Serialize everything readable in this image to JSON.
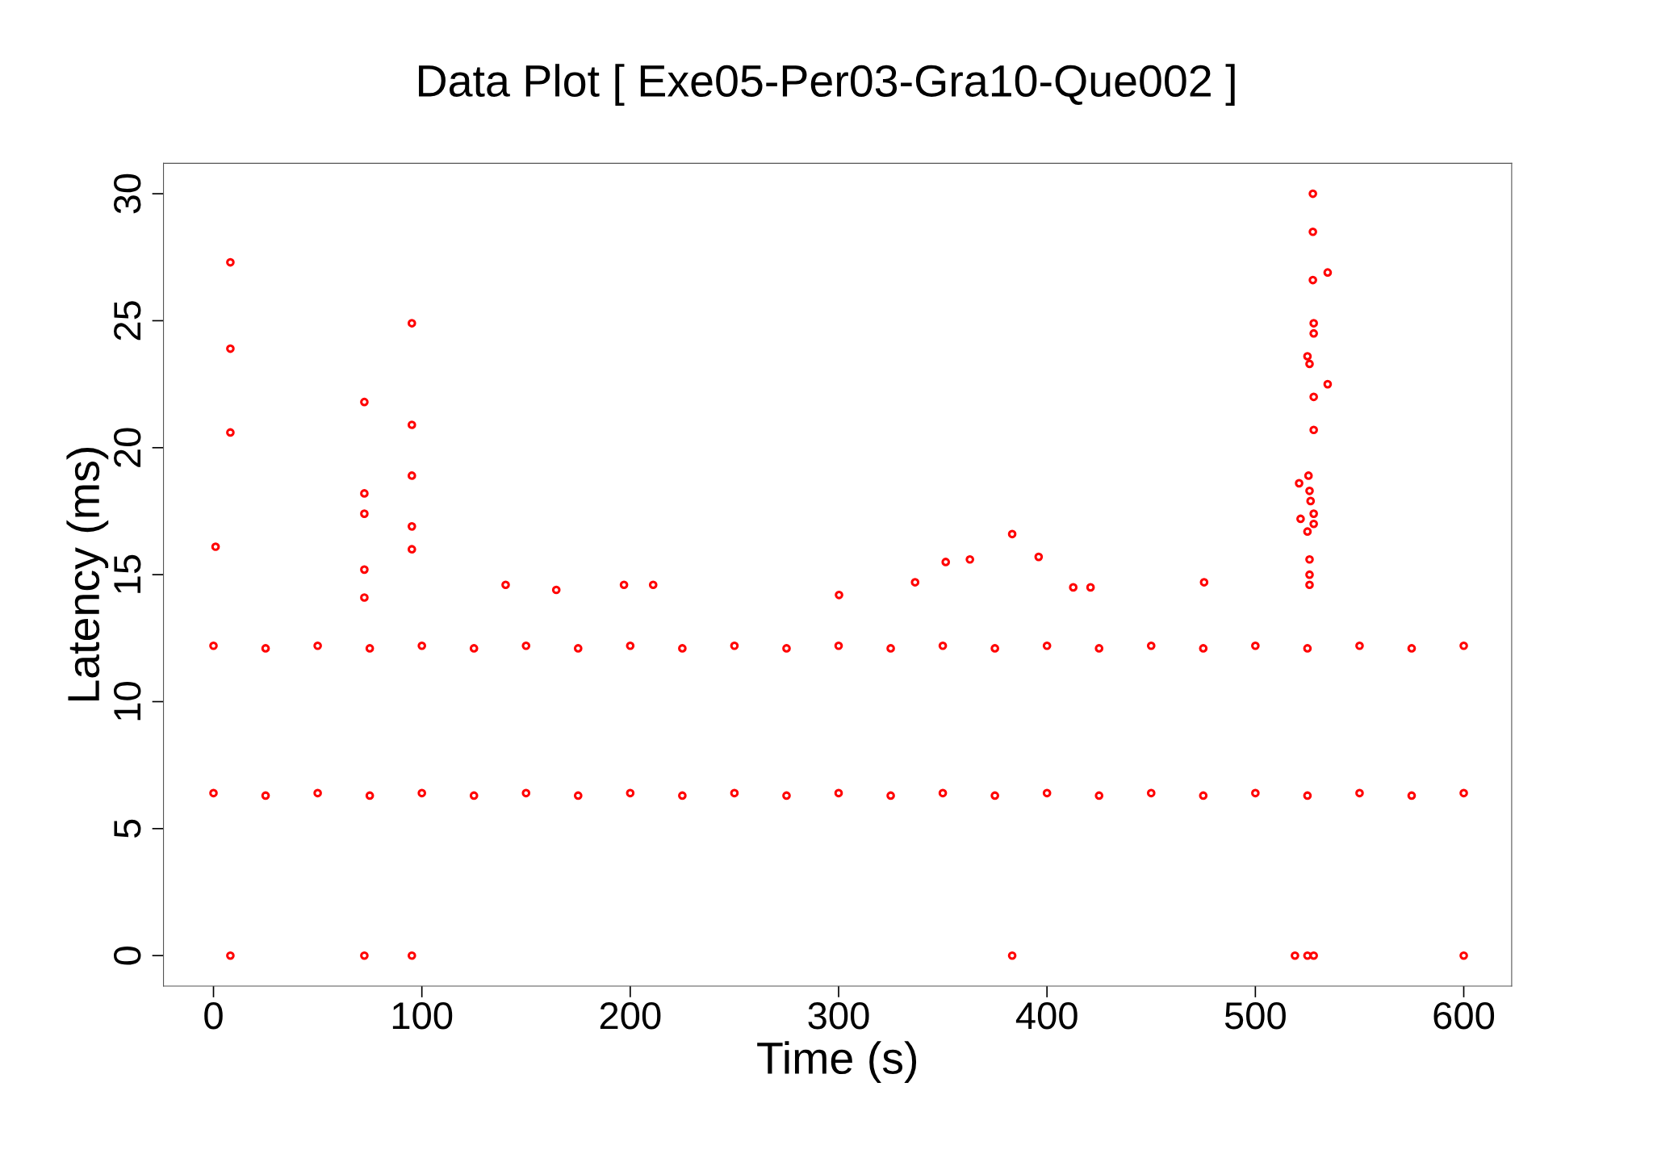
{
  "chart_data": {
    "type": "scatter",
    "title": "Data Plot [ Exe05-Per03-Gra10-Que002 ]",
    "xlabel": "Time (s)",
    "ylabel": "Latency (ms)",
    "xlim": [
      -24,
      623
    ],
    "ylim": [
      -1.2,
      31.2
    ],
    "xticks": [
      0,
      100,
      200,
      300,
      400,
      500,
      600
    ],
    "yticks": [
      0,
      5,
      10,
      15,
      20,
      25,
      30
    ],
    "grid": false,
    "marker": "circle",
    "series": [
      {
        "color": "#ff0000",
        "x": [
          8.1,
          8.1,
          8.1,
          1,
          8.1,
          72.4,
          72.4,
          72.4,
          72.4,
          72.4,
          72.4,
          95.2,
          95.2,
          95.2,
          95.2,
          95.2,
          95.2,
          383.3,
          396,
          383.3,
          527.6,
          527.6,
          527.6,
          534.7,
          528,
          528,
          525,
          526,
          528,
          534.7,
          528,
          521,
          525.5,
          526,
          526.5,
          528,
          528,
          521.7,
          525,
          526,
          526,
          526,
          519,
          525,
          528,
          600,
          475.4,
          412.6,
          336.7,
          140.2,
          164.5,
          211,
          197,
          300.2,
          351.4,
          363,
          420.9,
          0,
          25,
          50,
          75,
          100,
          125,
          150,
          175,
          200,
          225,
          250,
          275,
          300,
          325,
          350,
          375,
          400,
          425,
          450,
          475,
          500,
          525,
          550,
          575,
          600,
          0,
          25,
          50,
          75,
          100,
          125,
          150,
          175,
          200,
          225,
          250,
          275,
          300,
          325,
          350,
          375,
          400,
          425,
          450,
          475,
          500,
          525,
          550,
          575,
          600
        ],
        "values": [
          27.3,
          23.9,
          20.6,
          16.1,
          0,
          21.8,
          18.2,
          17.4,
          15.2,
          14.1,
          0,
          24.9,
          20.9,
          18.9,
          16.9,
          16.0,
          0,
          16.6,
          15.7,
          0,
          30.0,
          28.5,
          26.6,
          26.9,
          24.9,
          24.5,
          23.6,
          23.3,
          22.0,
          22.5,
          20.7,
          18.6,
          18.9,
          18.3,
          17.9,
          17.4,
          17.0,
          17.2,
          16.7,
          15.6,
          15.0,
          14.6,
          0,
          0,
          0,
          0,
          14.7,
          14.5,
          14.7,
          14.6,
          14.4,
          14.6,
          14.6,
          14.2,
          15.5,
          15.6,
          14.5,
          12.2,
          12.1,
          12.2,
          12.1,
          12.2,
          12.1,
          12.2,
          12.1,
          12.2,
          12.1,
          12.2,
          12.1,
          12.2,
          12.1,
          12.2,
          12.1,
          12.2,
          12.1,
          12.2,
          12.1,
          12.2,
          12.1,
          12.2,
          12.1,
          12.2,
          6.4,
          6.3,
          6.4,
          6.3,
          6.4,
          6.3,
          6.4,
          6.3,
          6.4,
          6.3,
          6.4,
          6.3,
          6.4,
          6.3,
          6.4,
          6.3,
          6.4,
          6.3,
          6.4,
          6.3,
          6.4,
          6.3,
          6.4,
          6.3,
          6.4
        ]
      }
    ]
  }
}
